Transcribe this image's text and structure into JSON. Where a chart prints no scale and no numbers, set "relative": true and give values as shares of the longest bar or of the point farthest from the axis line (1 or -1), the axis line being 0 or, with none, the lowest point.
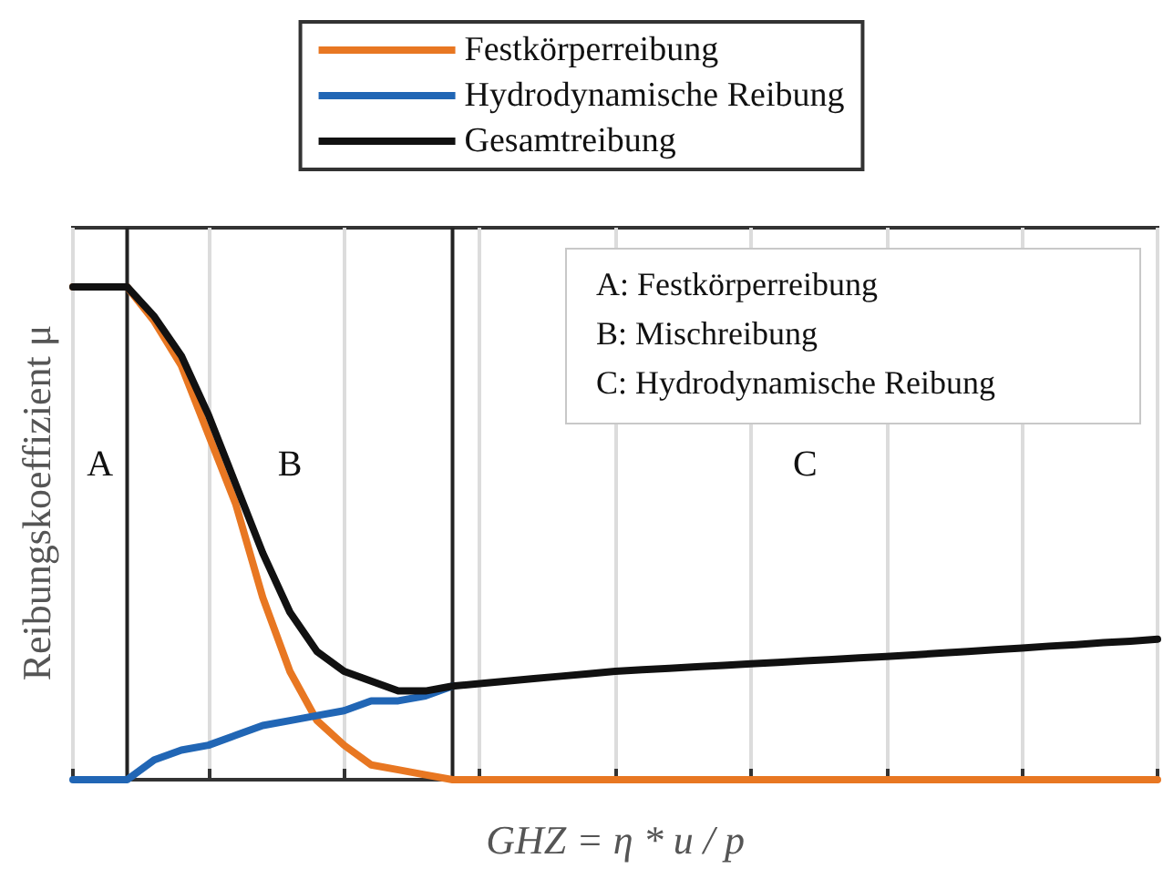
{
  "chart_data": {
    "type": "line",
    "relative": true,
    "xlabel": "GHZ = η * u / p",
    "ylabel": "Reibungskoeffizient μ",
    "categories": [
      null,
      null,
      null,
      null,
      null,
      null,
      null,
      null,
      null,
      null,
      null,
      null,
      null,
      null,
      null,
      null,
      null,
      null,
      null,
      null,
      null,
      null,
      null,
      null,
      null,
      null,
      null,
      null,
      null,
      null,
      null,
      null,
      null,
      null,
      null,
      null,
      null,
      null,
      null,
      null,
      null
    ],
    "series": [
      {
        "name": "Festkörperreibung",
        "color": "#e87722",
        "values": [
          1,
          1,
          1,
          0.93,
          0.84,
          0.7,
          0.56,
          0.37,
          0.22,
          0.12,
          0.07,
          0.03,
          0.02,
          0.01,
          0,
          0,
          0,
          0,
          0,
          0,
          0,
          0,
          0,
          0,
          0,
          0,
          0,
          0,
          0,
          0,
          0,
          0,
          0,
          0,
          0,
          0,
          0,
          0,
          0,
          0,
          0
        ]
      },
      {
        "name": "Hydrodynamische Reibung",
        "color": "#2166b5",
        "values": [
          0,
          0,
          0,
          0.04,
          0.06,
          0.07,
          0.09,
          0.11,
          0.12,
          0.13,
          0.14,
          0.16,
          0.16,
          0.17,
          0.19,
          null,
          null,
          null,
          null,
          null,
          null,
          null,
          null,
          null,
          null,
          null,
          null,
          null,
          null,
          null,
          null,
          null,
          null,
          null,
          null,
          null,
          null,
          null,
          null,
          null,
          null
        ]
      },
      {
        "name": "Gesamtreibung",
        "color": "#111111",
        "values": [
          1,
          1,
          1,
          0.94,
          0.86,
          0.74,
          0.6,
          0.46,
          0.34,
          0.26,
          0.22,
          0.2,
          0.18,
          0.18,
          0.19,
          0.195,
          0.2,
          0.205,
          0.21,
          0.215,
          0.22,
          0.223,
          0.226,
          0.229,
          0.232,
          0.235,
          0.238,
          0.241,
          0.244,
          0.247,
          0.25,
          0.253,
          0.257,
          0.26,
          0.264,
          0.267,
          0.271,
          0.274,
          0.278,
          0.281,
          0.285
        ]
      }
    ],
    "annotations": [
      "A",
      "B",
      "C",
      "A: Festkörperreibung",
      "B: Mischreibung",
      "C: Hydrodynamische Reibung"
    ],
    "grid": "x",
    "legend": "top",
    "marker": "none",
    "line_style": "solid"
  }
}
